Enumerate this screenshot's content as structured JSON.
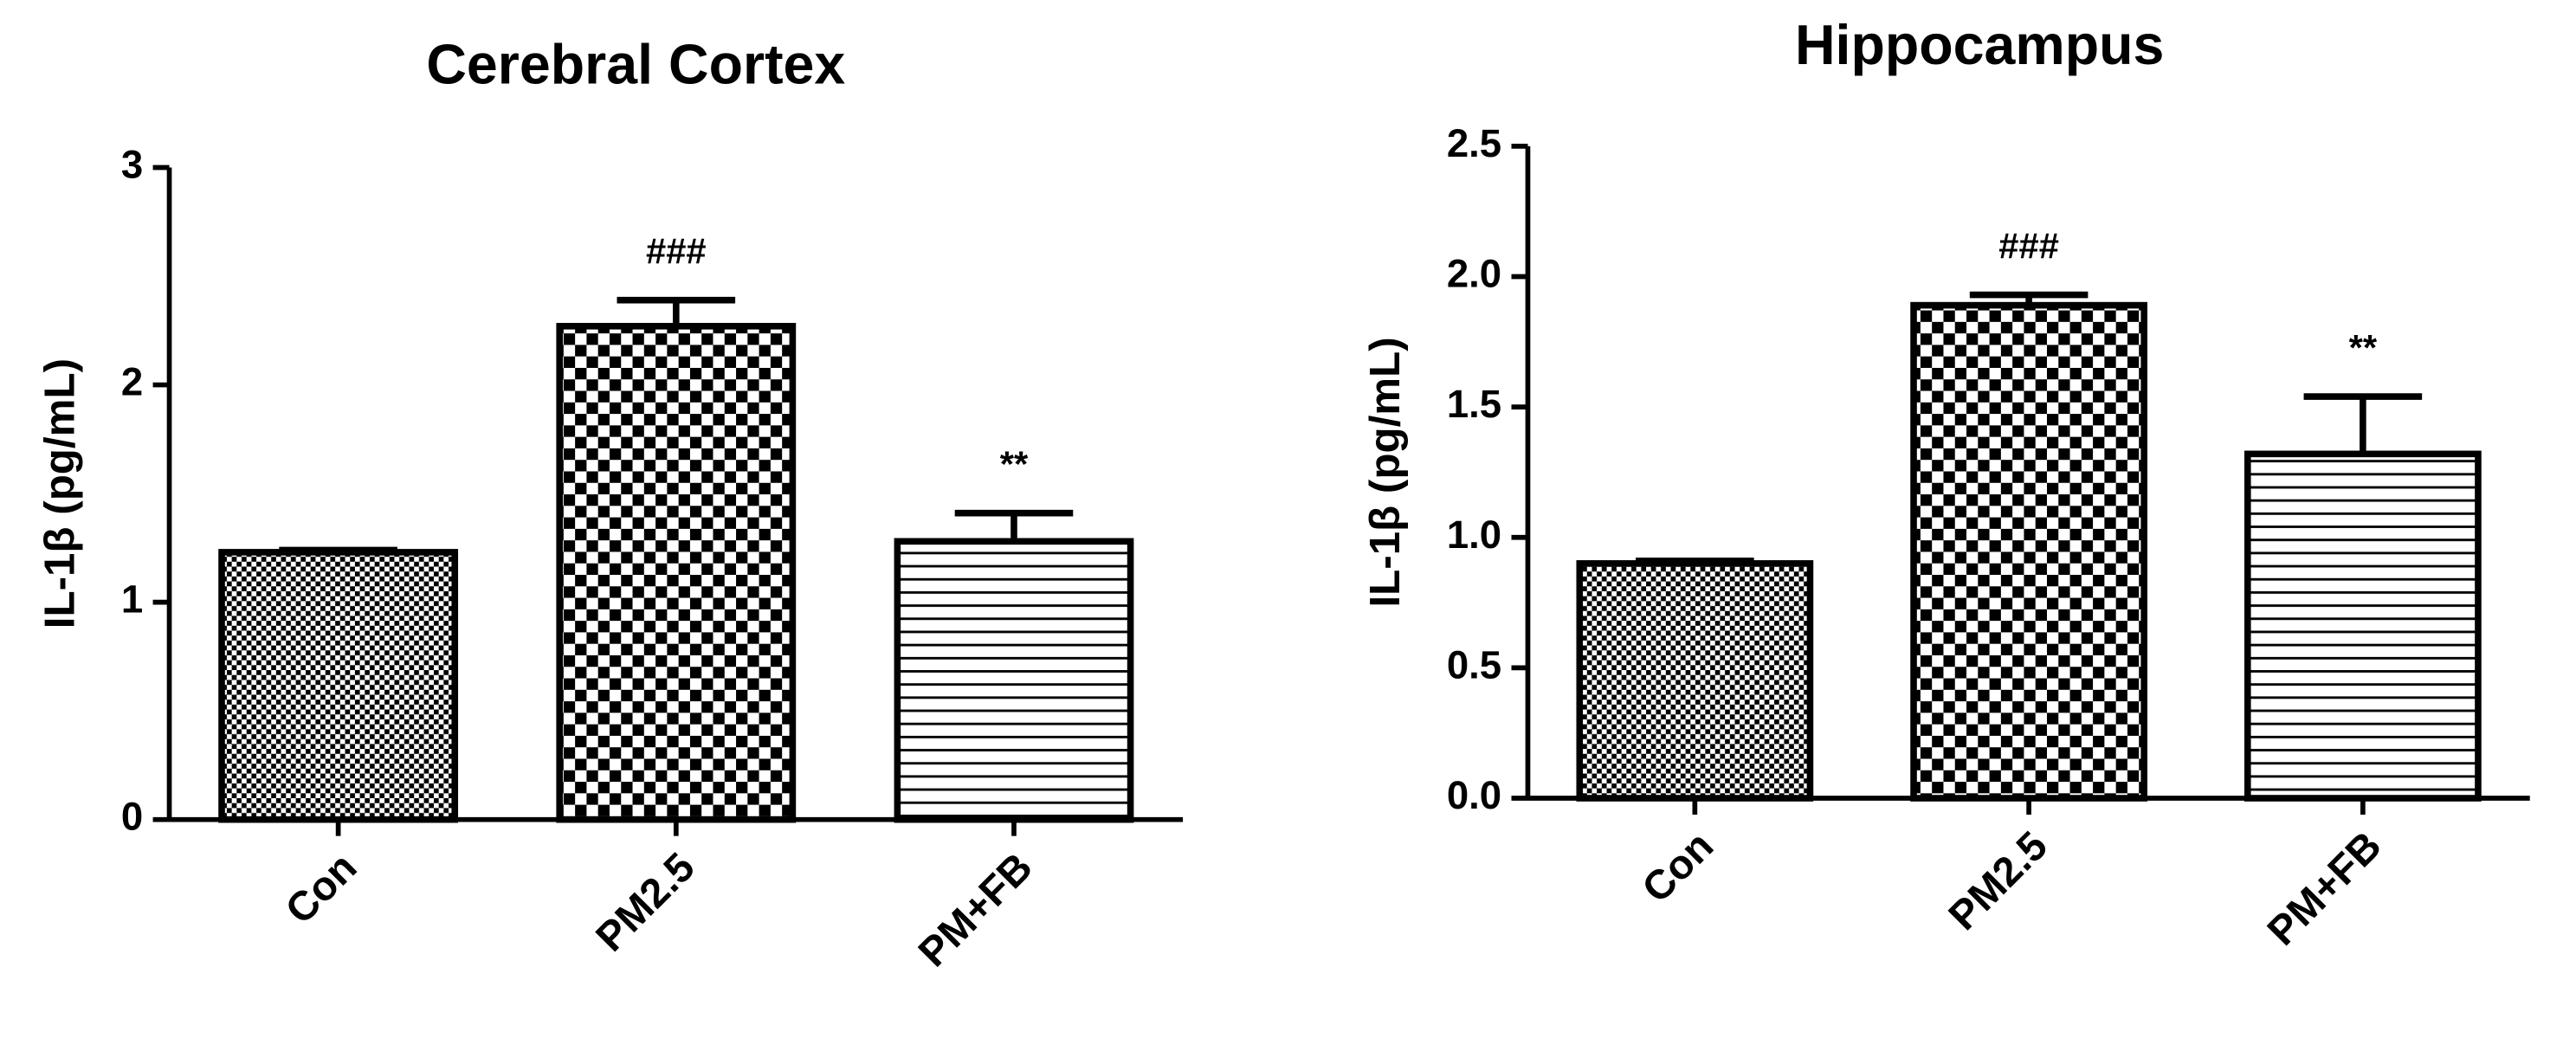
{
  "chart_data": [
    {
      "type": "bar",
      "title": "Cerebral Cortex",
      "y_label": "IL-1β (pg/mL)",
      "categories": [
        "Con",
        "PM2.5",
        "PM+FB"
      ],
      "values": [
        1.23,
        2.27,
        1.28
      ],
      "errors": [
        0.01,
        0.12,
        0.13
      ],
      "annotations": [
        null,
        "###",
        "**"
      ],
      "color": "#000000",
      "ylim": [
        0,
        3
      ],
      "yticks": [
        0,
        1,
        2,
        3
      ]
    },
    {
      "type": "bar",
      "title": "Hippocampus",
      "y_label": "IL-1β (pg/mL)",
      "categories": [
        "Con",
        "PM2.5",
        "PM+FB"
      ],
      "values": [
        0.9,
        1.89,
        1.32
      ],
      "errors": [
        0.01,
        0.04,
        0.22
      ],
      "annotations": [
        null,
        "###",
        "**"
      ],
      "color": "#000000",
      "ylim": [
        0,
        2.5
      ],
      "yticks": [
        {
          "value": 0,
          "label": "0.0"
        },
        {
          "value": 0.5,
          "label": "0.5"
        },
        {
          "value": 1,
          "label": "1.0"
        },
        {
          "value": 1.5,
          "label": "1.5"
        },
        {
          "value": 2,
          "label": "2.0"
        },
        {
          "value": 2.5,
          "label": "2.5"
        }
      ]
    }
  ]
}
